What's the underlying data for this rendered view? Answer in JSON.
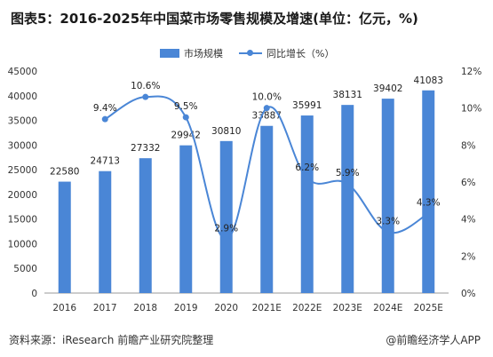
{
  "title": "图表5：2016-2025年中国菜市场零售规模及增速(单位：亿元，%)",
  "source": "资料来源：iResearch 前瞻产业研究院整理",
  "brand": "@前瞻经济学人APP",
  "chart_data": {
    "type": "bar",
    "categories": [
      "2016",
      "2017",
      "2018",
      "2019",
      "2020",
      "2021E",
      "2022E",
      "2023E",
      "2024E",
      "2025E"
    ],
    "series": [
      {
        "name": "市场规模",
        "type": "bar",
        "axis": "left",
        "color": "#4a86d6",
        "values": [
          22580,
          24713,
          27332,
          29942,
          30810,
          33887,
          35991,
          38131,
          39402,
          41083
        ]
      },
      {
        "name": "同比增长（%）",
        "type": "line",
        "axis": "right",
        "color": "#4a86d6",
        "values": [
          null,
          9.4,
          10.6,
          9.5,
          2.9,
          10.0,
          6.2,
          5.9,
          3.3,
          4.3
        ],
        "labels": [
          "",
          "9.4%",
          "10.6%",
          "9.5%",
          "2.9%",
          "10.0%",
          "6.2%",
          "5.9%",
          "3.3%",
          "4.3%"
        ]
      }
    ],
    "y_left": {
      "min": 0,
      "max": 45000,
      "step": 5000
    },
    "y_right": {
      "min": 0,
      "max": 12,
      "step": 2,
      "suffix": "%"
    },
    "grid": false,
    "legend": "top-center"
  }
}
